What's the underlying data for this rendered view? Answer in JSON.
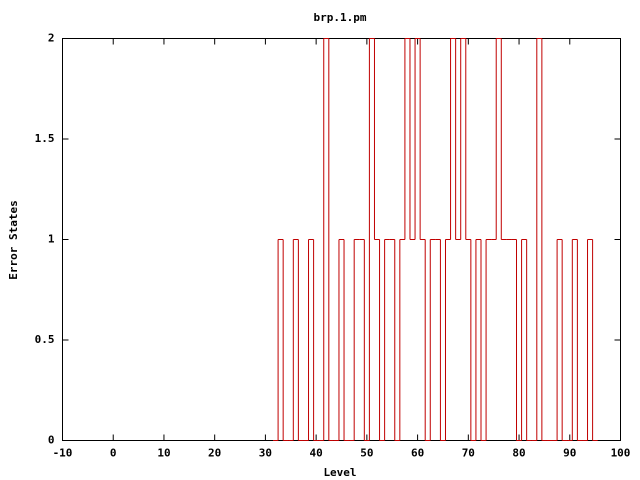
{
  "chart_data": {
    "type": "step",
    "title": "brp.1.pm",
    "x_label": "Level",
    "y_label": "Error States",
    "color": "#c00000",
    "x": [
      32,
      33,
      34,
      35,
      36,
      37,
      38,
      39,
      40,
      41,
      42,
      43,
      44,
      45,
      46,
      47,
      48,
      49,
      50,
      51,
      52,
      53,
      54,
      55,
      56,
      57,
      58,
      59,
      60,
      61,
      62,
      63,
      64,
      65,
      66,
      67,
      68,
      69,
      70,
      71,
      72,
      73,
      74,
      75,
      76,
      77,
      78,
      79,
      80,
      81,
      82,
      83,
      84,
      85,
      86,
      87,
      88,
      89,
      90,
      91,
      92,
      93,
      94,
      95
    ],
    "values": [
      0,
      1,
      0,
      0,
      1,
      0,
      0,
      1,
      0,
      0,
      2,
      0,
      0,
      1,
      0,
      0,
      1,
      1,
      0,
      2,
      1,
      0,
      1,
      1,
      0,
      1,
      2,
      1,
      2,
      1,
      0,
      1,
      1,
      0,
      1,
      2,
      1,
      2,
      1,
      0,
      1,
      0,
      1,
      1,
      2,
      1,
      1,
      1,
      0,
      1,
      0,
      0,
      2,
      0,
      0,
      0,
      1,
      0,
      0,
      1,
      0,
      0,
      1,
      0
    ],
    "xlim": [
      -10,
      100
    ],
    "xticks": [
      -10,
      0,
      10,
      20,
      30,
      40,
      50,
      60,
      70,
      80,
      90,
      100
    ],
    "ylim": [
      0,
      2
    ],
    "yticks": [
      0,
      0.5,
      1,
      1.5,
      2
    ]
  }
}
